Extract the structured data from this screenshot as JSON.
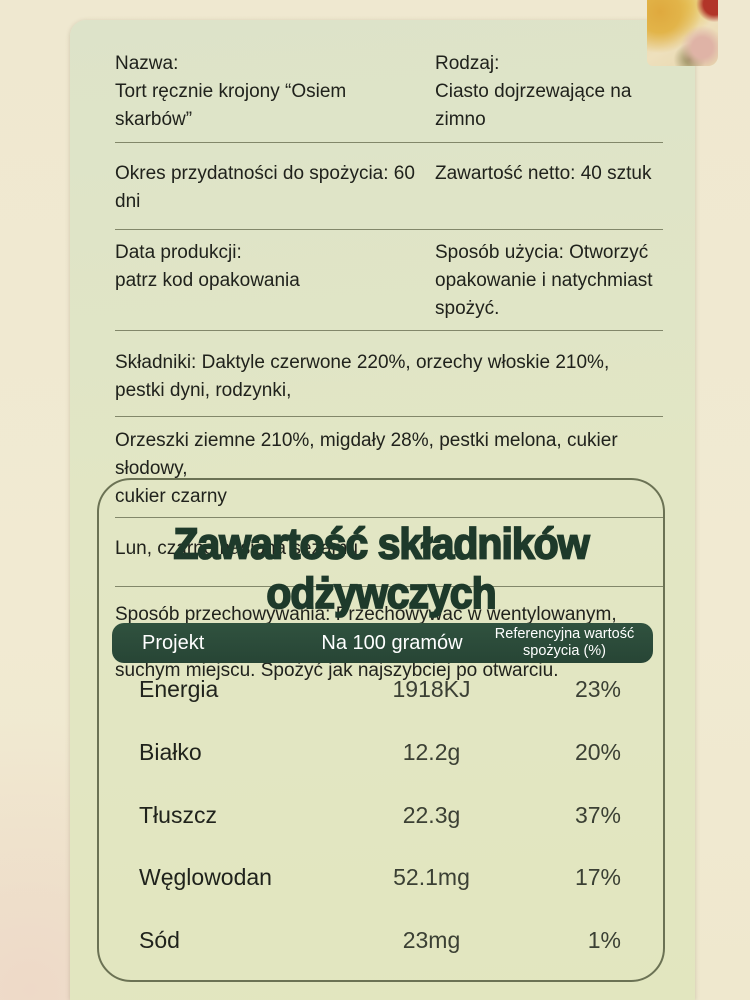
{
  "colors": {
    "outer_background": "#f0e9d2",
    "panel_background": "#e0e5c6",
    "header_bar_green": "#2b4c3b",
    "title_green": "#1e3a2b",
    "divider_olive": "#82876a",
    "box_border_olive": "#6b7254"
  },
  "images": {
    "top_right_photo": "nuts-dates-photo-fragment"
  },
  "info": {
    "nazwa": {
      "label": "Nazwa:",
      "value": "Tort ręcznie krojony “Osiem skarbów”"
    },
    "rodzaj": {
      "label": "Rodzaj:",
      "value": "Ciasto dojrzewające na zimno"
    },
    "okres": "Okres przydatności do spożycia: 60 dni",
    "netto": "Zawartość netto: 40 sztuk",
    "data_produkcji": {
      "label": "Data produkcji:",
      "value": "patrz kod opakowania"
    },
    "sposob_uzycia": {
      "line1": "Sposób użycia: Otworzyć",
      "line2": "opakowanie i natychmiast spożyć."
    },
    "skladniki_1": "Składniki: Daktyle czerwone 220%, orzechy włoskie 210%, pestki dyni, rodzynki,",
    "skladniki_2a": "Orzeszki ziemne 210%, migdały 28%, pestki melona, cukier słodowy,",
    "skladniki_2b": "cukier czarny",
    "skladniki_3": "Lun, czarne nasiona sezamu",
    "przechowywanie_1": "Sposób przechowywania: Przechowywać w wentylowanym, chłodnym i",
    "przechowywanie_2": "suchym miejscu. Spożyć jak najszybciej po otwarciu."
  },
  "nutrition": {
    "title": "Zawartość składników odżywczych",
    "header": {
      "item": "Projekt",
      "per": "Na 100 gramów",
      "ref_line1": "Referencyjna wartość",
      "ref_line2": "spożycia (%)"
    },
    "rows": [
      {
        "name": "Energia",
        "per100": "1918KJ",
        "ref": "23%"
      },
      {
        "name": "Białko",
        "per100": "12.2g",
        "ref": "20%"
      },
      {
        "name": "Tłuszcz",
        "per100": "22.3g",
        "ref": "37%"
      },
      {
        "name": "Węglowodan",
        "per100": "52.1mg",
        "ref": "17%"
      },
      {
        "name": "Sód",
        "per100": "23mg",
        "ref": "1%"
      }
    ]
  }
}
